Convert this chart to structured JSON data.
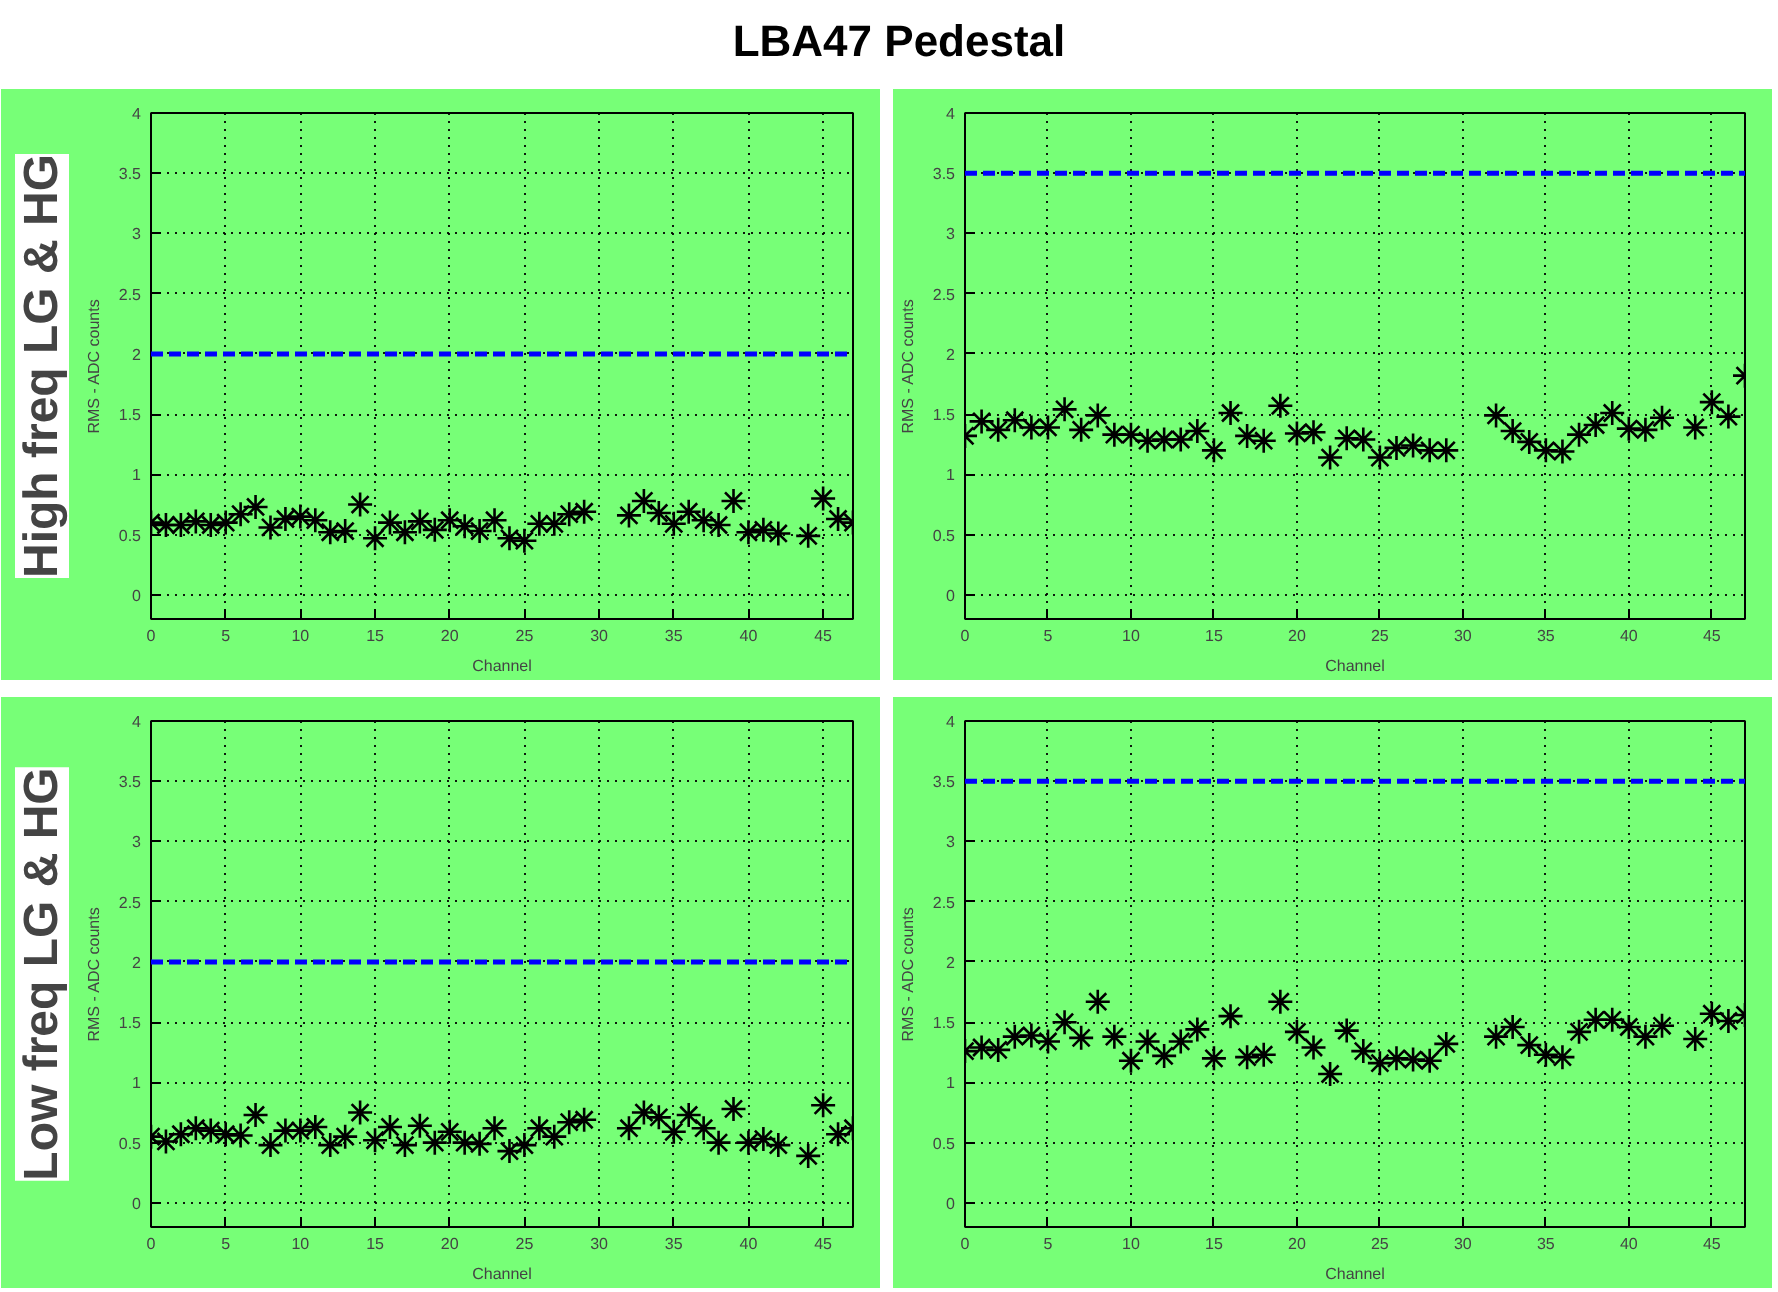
{
  "chart_data": [
    {
      "type": "scatter",
      "title": "LBA47 Pedestal",
      "annotations": [
        "High freq LG & HG"
      ],
      "xlabel": "Channel",
      "ylabel": "RMS - ADC counts",
      "marker": "cross",
      "grid": true,
      "xlim": [
        0,
        47
      ],
      "ylim": [
        -0.2,
        4
      ],
      "xticks": [
        0,
        5,
        10,
        15,
        20,
        25,
        30,
        35,
        40,
        45
      ],
      "yticks": [
        0,
        0.5,
        1,
        1.5,
        2,
        2.5,
        3,
        3.5,
        4
      ],
      "x": [
        0,
        1,
        2,
        3,
        4,
        5,
        6,
        7,
        8,
        9,
        10,
        11,
        12,
        13,
        14,
        15,
        16,
        17,
        18,
        19,
        20,
        21,
        22,
        23,
        24,
        25,
        26,
        27,
        28,
        29,
        32,
        33,
        34,
        35,
        36,
        37,
        38,
        39,
        40,
        41,
        42,
        44,
        45,
        46,
        47
      ],
      "series": [
        {
          "color": "#000000",
          "values": [
            0.6,
            0.58,
            0.58,
            0.61,
            0.58,
            0.6,
            0.67,
            0.73,
            0.56,
            0.63,
            0.65,
            0.62,
            0.52,
            0.53,
            0.75,
            0.47,
            0.6,
            0.52,
            0.61,
            0.54,
            0.62,
            0.57,
            0.53,
            0.62,
            0.47,
            0.45,
            0.59,
            0.59,
            0.67,
            0.69,
            0.66,
            0.78,
            0.68,
            0.59,
            0.69,
            0.62,
            0.58,
            0.78,
            0.52,
            0.54,
            0.51,
            0.49,
            0.8,
            0.63,
            0.6
          ]
        }
      ],
      "ref_lines": [
        {
          "axis": "y",
          "value": 2,
          "color": "#0000ff",
          "line_style": "dashed"
        }
      ]
    },
    {
      "type": "scatter",
      "xlabel": "Channel",
      "ylabel": "RMS - ADC counts",
      "marker": "cross",
      "grid": true,
      "xlim": [
        0,
        47
      ],
      "ylim": [
        -0.2,
        4
      ],
      "xticks": [
        0,
        5,
        10,
        15,
        20,
        25,
        30,
        35,
        40,
        45
      ],
      "yticks": [
        0,
        0.5,
        1,
        1.5,
        2,
        2.5,
        3,
        3.5,
        4
      ],
      "x": [
        0,
        1,
        2,
        3,
        4,
        5,
        6,
        7,
        8,
        9,
        10,
        11,
        12,
        13,
        14,
        15,
        16,
        17,
        18,
        19,
        20,
        21,
        22,
        23,
        24,
        25,
        26,
        27,
        28,
        29,
        32,
        33,
        34,
        35,
        36,
        37,
        38,
        39,
        40,
        41,
        42,
        44,
        45,
        46,
        47
      ],
      "series": [
        {
          "color": "#000000",
          "values": [
            1.32,
            1.44,
            1.37,
            1.45,
            1.39,
            1.39,
            1.54,
            1.37,
            1.49,
            1.33,
            1.33,
            1.28,
            1.29,
            1.29,
            1.36,
            1.2,
            1.51,
            1.32,
            1.28,
            1.57,
            1.34,
            1.35,
            1.14,
            1.3,
            1.29,
            1.14,
            1.22,
            1.24,
            1.2,
            1.2,
            1.49,
            1.36,
            1.27,
            1.2,
            1.19,
            1.33,
            1.41,
            1.51,
            1.38,
            1.37,
            1.47,
            1.39,
            1.6,
            1.48,
            1.82
          ]
        }
      ],
      "ref_lines": [
        {
          "axis": "y",
          "value": 3.5,
          "color": "#0000ff",
          "line_style": "dashed"
        }
      ]
    },
    {
      "type": "scatter",
      "annotations": [
        "Low freq LG & HG"
      ],
      "xlabel": "Channel",
      "ylabel": "RMS - ADC counts",
      "marker": "cross",
      "grid": true,
      "xlim": [
        0,
        47
      ],
      "ylim": [
        -0.2,
        4
      ],
      "xticks": [
        0,
        5,
        10,
        15,
        20,
        25,
        30,
        35,
        40,
        45
      ],
      "yticks": [
        0,
        0.5,
        1,
        1.5,
        2,
        2.5,
        3,
        3.5,
        4
      ],
      "x": [
        0,
        1,
        2,
        3,
        4,
        5,
        6,
        7,
        8,
        9,
        10,
        11,
        12,
        13,
        14,
        15,
        16,
        17,
        18,
        19,
        20,
        21,
        22,
        23,
        24,
        25,
        26,
        27,
        28,
        29,
        32,
        33,
        34,
        35,
        36,
        37,
        38,
        39,
        40,
        41,
        42,
        44,
        45,
        46,
        47
      ],
      "series": [
        {
          "color": "#000000",
          "values": [
            0.55,
            0.51,
            0.57,
            0.62,
            0.6,
            0.57,
            0.56,
            0.73,
            0.48,
            0.6,
            0.6,
            0.63,
            0.48,
            0.55,
            0.75,
            0.52,
            0.63,
            0.48,
            0.64,
            0.5,
            0.59,
            0.5,
            0.49,
            0.62,
            0.43,
            0.48,
            0.62,
            0.55,
            0.67,
            0.69,
            0.62,
            0.75,
            0.71,
            0.59,
            0.73,
            0.62,
            0.5,
            0.78,
            0.5,
            0.53,
            0.48,
            0.39,
            0.81,
            0.57,
            0.62
          ]
        }
      ],
      "ref_lines": [
        {
          "axis": "y",
          "value": 2,
          "color": "#0000ff",
          "line_style": "dashed"
        }
      ]
    },
    {
      "type": "scatter",
      "xlabel": "Channel",
      "ylabel": "RMS - ADC counts",
      "marker": "cross",
      "grid": true,
      "xlim": [
        0,
        47
      ],
      "ylim": [
        -0.2,
        4
      ],
      "xticks": [
        0,
        5,
        10,
        15,
        20,
        25,
        30,
        35,
        40,
        45
      ],
      "yticks": [
        0,
        0.5,
        1,
        1.5,
        2,
        2.5,
        3,
        3.5,
        4
      ],
      "x": [
        0,
        1,
        2,
        3,
        4,
        5,
        6,
        7,
        8,
        9,
        10,
        11,
        12,
        13,
        14,
        15,
        16,
        17,
        18,
        19,
        20,
        21,
        22,
        23,
        24,
        25,
        26,
        27,
        28,
        29,
        32,
        33,
        34,
        35,
        36,
        37,
        38,
        39,
        40,
        41,
        42,
        44,
        45,
        46,
        47
      ],
      "series": [
        {
          "color": "#000000",
          "values": [
            1.26,
            1.29,
            1.27,
            1.38,
            1.39,
            1.34,
            1.5,
            1.37,
            1.67,
            1.38,
            1.18,
            1.34,
            1.22,
            1.34,
            1.44,
            1.2,
            1.55,
            1.21,
            1.23,
            1.67,
            1.42,
            1.29,
            1.07,
            1.43,
            1.26,
            1.16,
            1.2,
            1.19,
            1.18,
            1.32,
            1.38,
            1.46,
            1.31,
            1.23,
            1.21,
            1.42,
            1.52,
            1.52,
            1.46,
            1.38,
            1.47,
            1.36,
            1.57,
            1.51,
            1.56
          ]
        }
      ],
      "ref_lines": [
        {
          "axis": "y",
          "value": 3.5,
          "color": "#0000ff",
          "line_style": "dashed"
        }
      ]
    }
  ]
}
